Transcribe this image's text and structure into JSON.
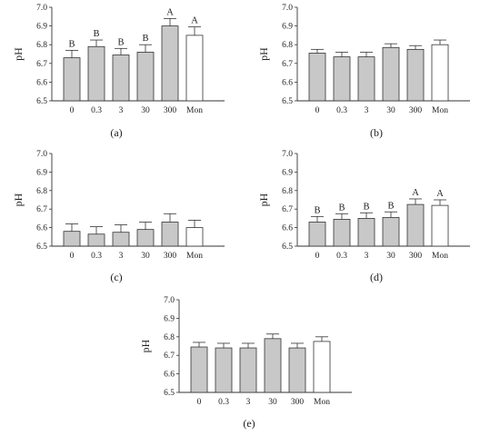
{
  "figure": {
    "panels_note": "five panels a–e"
  },
  "chart_data": [
    {
      "type": "bar",
      "panel_label": "(a)",
      "panel_letter": "a",
      "ylabel": "pH",
      "ylim": [
        6.5,
        7.0
      ],
      "yticks": [
        "6.5",
        "6.6",
        "6.7",
        "6.8",
        "6.9",
        "7.0"
      ],
      "categories": [
        "0",
        "0.3",
        "3",
        "30",
        "300",
        "Mon"
      ],
      "values": [
        6.73,
        6.79,
        6.745,
        6.76,
        6.9,
        6.85
      ],
      "errors": [
        0.04,
        0.035,
        0.035,
        0.04,
        0.04,
        0.045
      ],
      "significance": [
        "B",
        "B",
        "B",
        "B",
        "A",
        "A"
      ],
      "bar_colors": [
        "#c8c8c8",
        "#c8c8c8",
        "#c8c8c8",
        "#c8c8c8",
        "#c8c8c8",
        "#ffffff"
      ]
    },
    {
      "type": "bar",
      "panel_label": "(b)",
      "panel_letter": "b",
      "ylabel": "pH",
      "ylim": [
        6.5,
        7.0
      ],
      "yticks": [
        "6.5",
        "6.6",
        "6.7",
        "6.8",
        "6.9",
        "7.0"
      ],
      "categories": [
        "0",
        "0.3",
        "3",
        "30",
        "300",
        "Mon"
      ],
      "values": [
        6.755,
        6.735,
        6.735,
        6.785,
        6.775,
        6.8
      ],
      "errors": [
        0.02,
        0.025,
        0.025,
        0.02,
        0.02,
        0.025
      ],
      "significance": [
        "",
        "",
        "",
        "",
        "",
        ""
      ],
      "bar_colors": [
        "#c8c8c8",
        "#c8c8c8",
        "#c8c8c8",
        "#c8c8c8",
        "#c8c8c8",
        "#ffffff"
      ]
    },
    {
      "type": "bar",
      "panel_label": "(c)",
      "panel_letter": "c",
      "ylabel": "pH",
      "ylim": [
        6.5,
        7.0
      ],
      "yticks": [
        "6.5",
        "6.6",
        "6.7",
        "6.8",
        "6.9",
        "7.0"
      ],
      "categories": [
        "0",
        "0.3",
        "3",
        "30",
        "300",
        "Mon"
      ],
      "values": [
        6.58,
        6.565,
        6.575,
        6.59,
        6.63,
        6.6
      ],
      "errors": [
        0.04,
        0.04,
        0.04,
        0.04,
        0.045,
        0.04
      ],
      "significance": [
        "",
        "",
        "",
        "",
        "",
        ""
      ],
      "bar_colors": [
        "#c8c8c8",
        "#c8c8c8",
        "#c8c8c8",
        "#c8c8c8",
        "#c8c8c8",
        "#ffffff"
      ]
    },
    {
      "type": "bar",
      "panel_label": "(d)",
      "panel_letter": "d",
      "ylabel": "pH",
      "ylim": [
        6.5,
        7.0
      ],
      "yticks": [
        "6.5",
        "6.6",
        "6.7",
        "6.8",
        "6.9",
        "7.0"
      ],
      "categories": [
        "0",
        "0.3",
        "3",
        "30",
        "300",
        "Mon"
      ],
      "values": [
        6.63,
        6.645,
        6.65,
        6.655,
        6.725,
        6.72
      ],
      "errors": [
        0.03,
        0.03,
        0.03,
        0.03,
        0.03,
        0.03
      ],
      "significance": [
        "B",
        "B",
        "B",
        "B",
        "A",
        "A"
      ],
      "bar_colors": [
        "#c8c8c8",
        "#c8c8c8",
        "#c8c8c8",
        "#c8c8c8",
        "#c8c8c8",
        "#ffffff"
      ]
    },
    {
      "type": "bar",
      "panel_label": "(e)",
      "panel_letter": "e",
      "ylabel": "pH",
      "ylim": [
        6.5,
        7.0
      ],
      "yticks": [
        "6.5",
        "6.6",
        "6.7",
        "6.8",
        "6.9",
        "7.0"
      ],
      "categories": [
        "0",
        "0.3",
        "3",
        "30",
        "300",
        "Mon"
      ],
      "values": [
        6.745,
        6.74,
        6.74,
        6.79,
        6.74,
        6.775
      ],
      "errors": [
        0.025,
        0.025,
        0.025,
        0.025,
        0.025,
        0.025
      ],
      "significance": [
        "",
        "",
        "",
        "",
        "",
        ""
      ],
      "bar_colors": [
        "#c8c8c8",
        "#c8c8c8",
        "#c8c8c8",
        "#c8c8c8",
        "#c8c8c8",
        "#ffffff"
      ]
    }
  ]
}
